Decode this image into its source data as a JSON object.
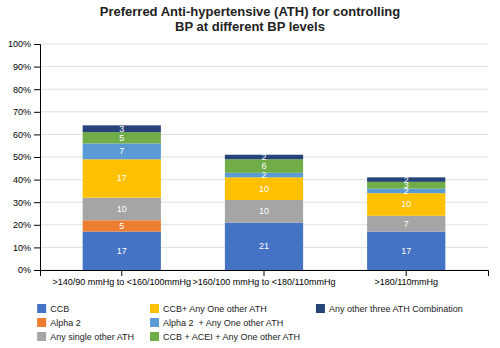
{
  "chart_data": {
    "type": "bar",
    "stacked": true,
    "title": "Preferred Anti-hypertensive (ATH) for controlling\nBP at different BP levels",
    "categories": [
      ">140/90 mmHg to <160/100mmHg",
      ">160/100 mmHg to <180/110mmHg",
      ">180/110mmHg"
    ],
    "series": [
      {
        "name": "CCB",
        "color": "#4472C4",
        "values": [
          17,
          21,
          17
        ]
      },
      {
        "name": "Alpha 2",
        "color": "#ED7D31",
        "values": [
          5,
          0,
          0
        ]
      },
      {
        "name": "Any single other ATH",
        "color": "#A5A5A5",
        "values": [
          10,
          10,
          7
        ]
      },
      {
        "name": "CCB+ Any One other ATH",
        "color": "#FFC000",
        "values": [
          17,
          10,
          10
        ]
      },
      {
        "name": "Alpha 2  + Any One other ATH",
        "color": "#5B9BD5",
        "values": [
          7,
          2,
          2
        ]
      },
      {
        "name": "CCB + ACEI + Any One other ATH",
        "color": "#70AD47",
        "values": [
          5,
          6,
          3
        ]
      },
      {
        "name": "Any other three ATH Combination",
        "color": "#264478",
        "values": [
          3,
          2,
          2
        ]
      }
    ],
    "ylim": [
      0,
      100
    ],
    "yticks": [
      {
        "value": 0,
        "label": "0%"
      },
      {
        "value": 10,
        "label": "10%"
      },
      {
        "value": 20,
        "label": "20%"
      },
      {
        "value": 30,
        "label": "30%"
      },
      {
        "value": 40,
        "label": "40%"
      },
      {
        "value": 50,
        "label": "50%"
      },
      {
        "value": 60,
        "label": "60%"
      },
      {
        "value": 70,
        "label": "70%"
      },
      {
        "value": 80,
        "label": "80%"
      },
      {
        "value": 90,
        "label": "90%"
      },
      {
        "value": 100,
        "label": "100%"
      }
    ],
    "grid": true,
    "data_labels": true,
    "legend": "bottom"
  }
}
